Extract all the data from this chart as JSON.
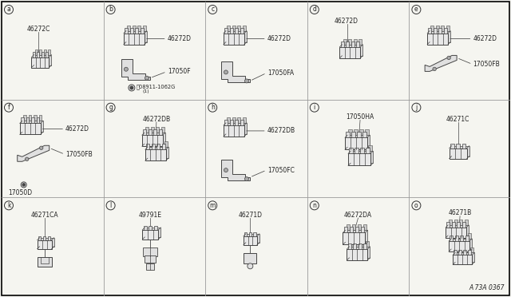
{
  "bg_color": "#f5f5f0",
  "border_color": "#000000",
  "grid_color": "#999999",
  "line_color": "#444444",
  "text_color": "#222222",
  "footer": "A 73A 0367",
  "cells": [
    {
      "row": 0,
      "col": 0,
      "label": "a",
      "part1": "46272C"
    },
    {
      "row": 0,
      "col": 1,
      "label": "b",
      "part1": "46272D",
      "part2": "17050F",
      "part3": "08911-1062G"
    },
    {
      "row": 0,
      "col": 2,
      "label": "c",
      "part1": "46272D",
      "part2": "17050FA"
    },
    {
      "row": 0,
      "col": 3,
      "label": "d",
      "part1": "46272D"
    },
    {
      "row": 0,
      "col": 4,
      "label": "e",
      "part1": "46272D",
      "part2": "17050FB"
    },
    {
      "row": 1,
      "col": 0,
      "label": "f",
      "part1": "46272D",
      "part2": "17050FB",
      "part3": "17050D"
    },
    {
      "row": 1,
      "col": 1,
      "label": "g",
      "part1": "46272DB"
    },
    {
      "row": 1,
      "col": 2,
      "label": "h",
      "part1": "46272DB",
      "part2": "17050FC"
    },
    {
      "row": 1,
      "col": 3,
      "label": "i",
      "part1": "17050HA"
    },
    {
      "row": 1,
      "col": 4,
      "label": "j",
      "part1": "46271C"
    },
    {
      "row": 2,
      "col": 0,
      "label": "k",
      "part1": "46271CA"
    },
    {
      "row": 2,
      "col": 1,
      "label": "l",
      "part1": "49791E"
    },
    {
      "row": 2,
      "col": 2,
      "label": "m",
      "part1": "46271D"
    },
    {
      "row": 2,
      "col": 3,
      "label": "n",
      "part1": "46272DA"
    },
    {
      "row": 2,
      "col": 4,
      "label": "o",
      "part1": "46271B"
    }
  ]
}
